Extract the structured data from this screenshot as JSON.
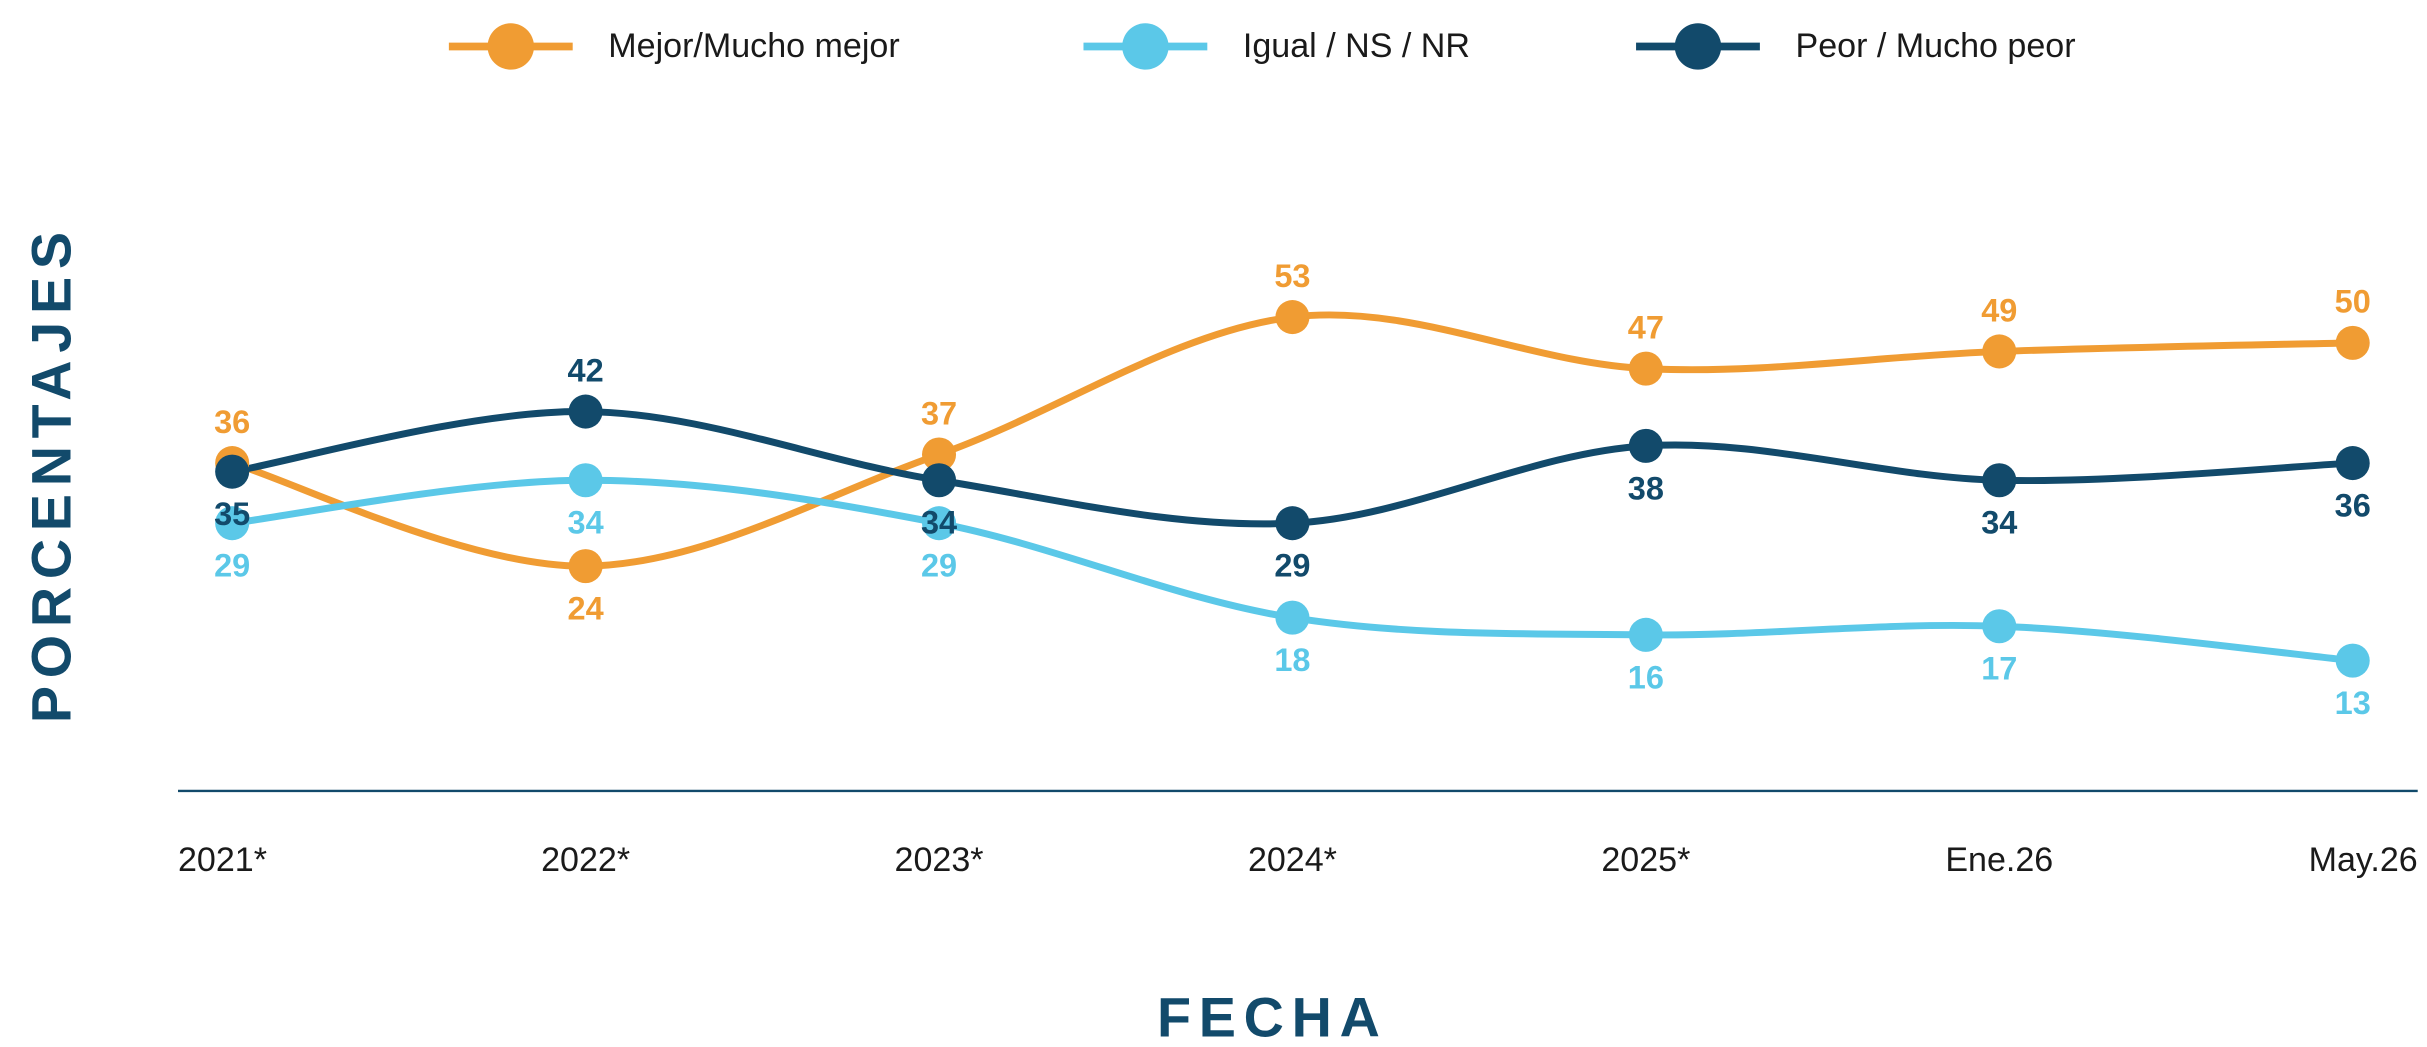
{
  "chart_data": {
    "type": "line",
    "categories": [
      "2021*",
      "2022*",
      "2023*",
      "2024*",
      "2025*",
      "Ene.26",
      "May.26"
    ],
    "series": [
      {
        "name": "Mejor/Mucho mejor",
        "color": "#f09c33",
        "values": [
          36,
          24,
          37,
          53,
          47,
          49,
          50
        ]
      },
      {
        "name": "Igual / NS / NR",
        "color": "#5bc8e8",
        "values": [
          29,
          34,
          29,
          18,
          16,
          17,
          13
        ]
      },
      {
        "name": "Peor / Mucho peor",
        "color": "#124a6b",
        "values": [
          35,
          42,
          34,
          29,
          38,
          34,
          36
        ]
      }
    ],
    "ylim": [
      -2,
      60
    ],
    "xlabel": "FECHA",
    "ylabel": "PORCENTAJES",
    "legend": "top",
    "grid": false
  }
}
